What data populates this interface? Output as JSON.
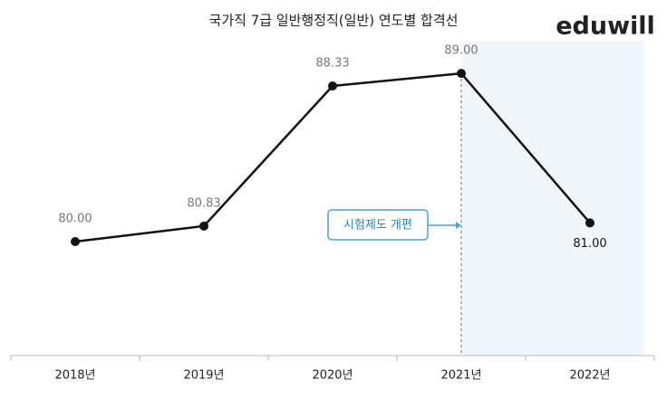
{
  "logo": "eduwill",
  "chart_data": {
    "type": "line",
    "title": "국가직 7급 일반행정직(일반) 연도별 합격선",
    "categories": [
      "2018년",
      "2019년",
      "2020년",
      "2021년",
      "2022년"
    ],
    "values": [
      80,
      80.83,
      88.33,
      89,
      81
    ],
    "value_labels": [
      "80.00",
      "80.83",
      "88.33",
      "89.00",
      "81.00"
    ],
    "color": "#111111",
    "ylim": [
      73.9,
      90.75
    ],
    "annotations": [
      {
        "text": "시험제도 개편"
      }
    ]
  }
}
